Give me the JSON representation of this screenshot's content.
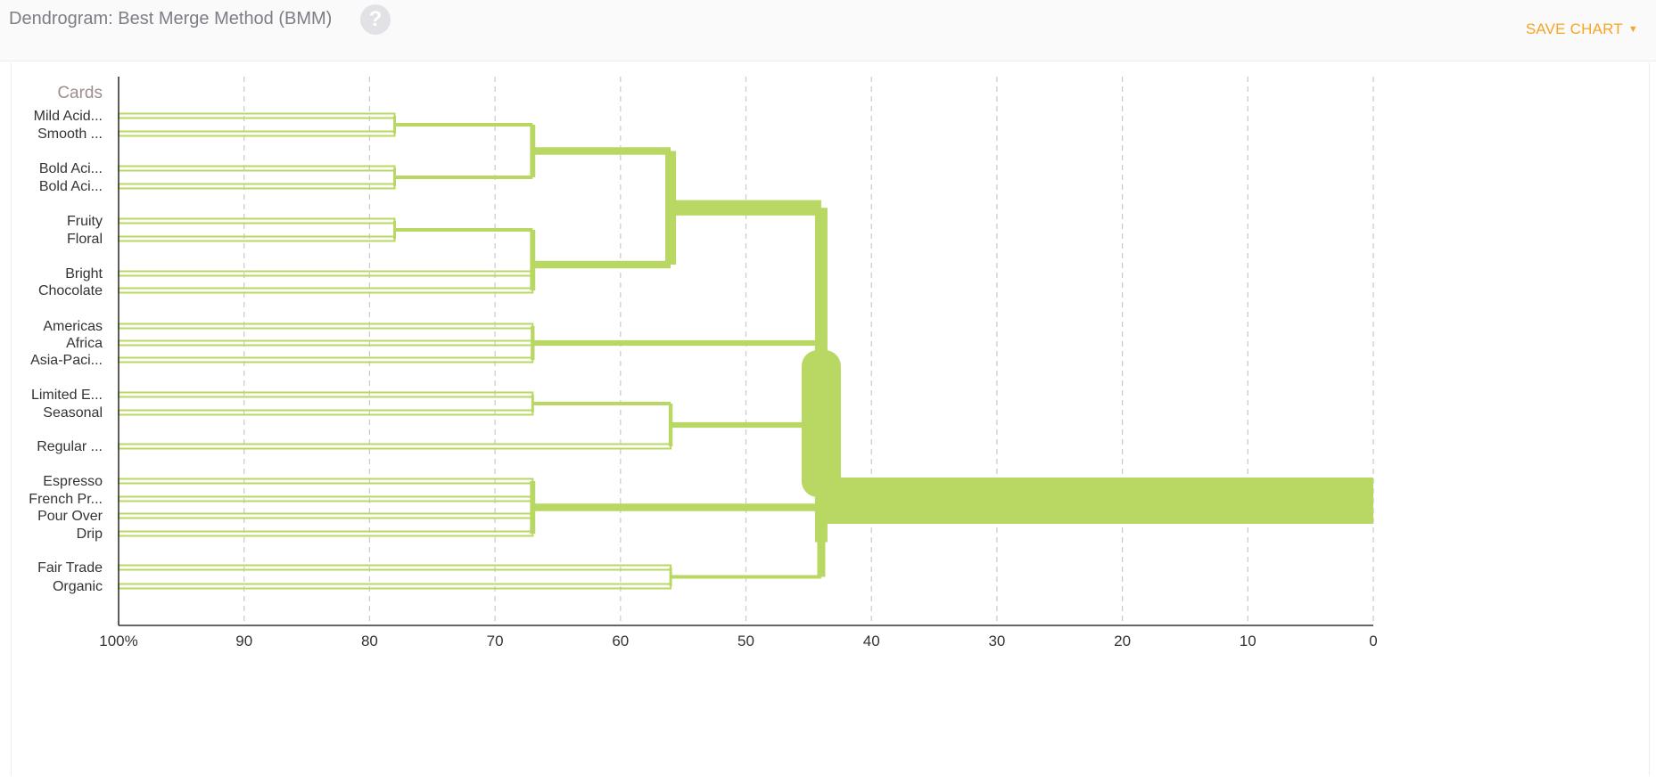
{
  "header": {
    "title": "Dendrogram: Best Merge Method (BMM)",
    "help_icon": "question-icon",
    "save_label": "SAVE CHART",
    "save_caret_icon": "caret-down-icon"
  },
  "colors": {
    "accent": "#f5a623",
    "branch": "#b8d863",
    "leaf_outline": "#b8d863"
  },
  "chart_data": {
    "type": "dendrogram",
    "y_axis_title": "Cards",
    "x_ticks": [
      "100%",
      "90",
      "80",
      "70",
      "60",
      "50",
      "40",
      "30",
      "20",
      "10",
      "0"
    ],
    "x_range": [
      100,
      0
    ],
    "grid": true,
    "leaves": [
      "Mild Acid...",
      "Smooth ...",
      "Bold Aci...",
      "Bold Aci...",
      "Fruity",
      "Floral",
      "Bright",
      "Chocolate",
      "Americas",
      "Africa",
      "Asia-Paci...",
      "Limited E...",
      "Seasonal",
      "Regular ...",
      "Espresso",
      "French Pr...",
      "Pour Over",
      "Drip",
      "Fair Trade",
      "Organic"
    ],
    "merges": [
      {
        "id": "m1",
        "children": [
          "L0",
          "L1"
        ],
        "value": 78
      },
      {
        "id": "m2",
        "children": [
          "L2",
          "L3"
        ],
        "value": 78
      },
      {
        "id": "m3",
        "children": [
          "L4",
          "L5"
        ],
        "value": 78
      },
      {
        "id": "m4",
        "children": [
          "m1",
          "m2"
        ],
        "value": 67
      },
      {
        "id": "m5",
        "children": [
          "m3",
          "L6",
          "L7"
        ],
        "value": 67
      },
      {
        "id": "m6",
        "children": [
          "L8",
          "L9",
          "L10"
        ],
        "value": 67
      },
      {
        "id": "m7",
        "children": [
          "L11",
          "L12"
        ],
        "value": 67
      },
      {
        "id": "m8",
        "children": [
          "L14",
          "L15",
          "L16",
          "L17"
        ],
        "value": 67
      },
      {
        "id": "m9",
        "children": [
          "m4",
          "m5"
        ],
        "value": 56
      },
      {
        "id": "m10",
        "children": [
          "m7",
          "L13"
        ],
        "value": 56
      },
      {
        "id": "m11",
        "children": [
          "L18",
          "L19"
        ],
        "value": 56
      },
      {
        "id": "m12",
        "children": [
          "m8",
          "m11"
        ],
        "value": 44
      },
      {
        "id": "root",
        "children": [
          "m9",
          "m6",
          "m10",
          "m12"
        ],
        "value": 44
      }
    ]
  }
}
